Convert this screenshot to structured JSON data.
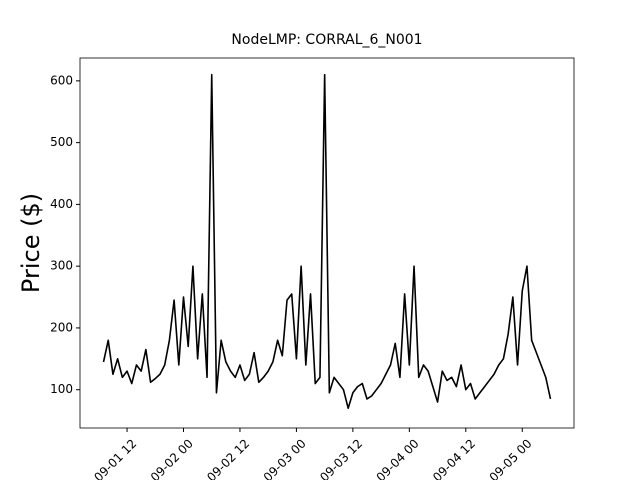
{
  "chart_data": {
    "type": "line",
    "title": "NodeLMP: CORRAL_6_N001",
    "y_label": "Price ($)",
    "color": "#000000",
    "x": [
      "09-01 07",
      "09-01 08",
      "09-01 09",
      "09-01 10",
      "09-01 11",
      "09-01 12",
      "09-01 13",
      "09-01 14",
      "09-01 15",
      "09-01 16",
      "09-01 17",
      "09-01 18",
      "09-01 19",
      "09-01 20",
      "09-01 21",
      "09-01 22",
      "09-01 23",
      "09-02 00",
      "09-02 01",
      "09-02 02",
      "09-02 03",
      "09-02 04",
      "09-02 05",
      "09-02 06",
      "09-02 07",
      "09-02 08",
      "09-02 09",
      "09-02 10",
      "09-02 11",
      "09-02 12",
      "09-02 13",
      "09-02 14",
      "09-02 15",
      "09-02 16",
      "09-02 17",
      "09-02 18",
      "09-02 19",
      "09-02 20",
      "09-02 21",
      "09-02 22",
      "09-02 23",
      "09-03 00",
      "09-03 01",
      "09-03 02",
      "09-03 03",
      "09-03 04",
      "09-03 05",
      "09-03 06",
      "09-03 07",
      "09-03 08",
      "09-03 09",
      "09-03 10",
      "09-03 11",
      "09-03 12",
      "09-03 13",
      "09-03 14",
      "09-03 15",
      "09-03 16",
      "09-03 17",
      "09-03 18",
      "09-03 19",
      "09-03 20",
      "09-03 21",
      "09-03 22",
      "09-03 23",
      "09-04 00",
      "09-04 01",
      "09-04 02",
      "09-04 03",
      "09-04 04",
      "09-04 05",
      "09-04 06",
      "09-04 07",
      "09-04 08",
      "09-04 09",
      "09-04 10",
      "09-04 11",
      "09-04 12",
      "09-04 13",
      "09-04 14",
      "09-04 15",
      "09-04 16",
      "09-04 17",
      "09-04 18",
      "09-04 19",
      "09-04 20",
      "09-04 21",
      "09-04 22",
      "09-04 23",
      "09-05 00",
      "09-05 01",
      "09-05 02",
      "09-05 03",
      "09-05 04",
      "09-05 05",
      "09-05 06"
    ],
    "values": [
      145,
      180,
      125,
      150,
      120,
      130,
      110,
      140,
      130,
      165,
      112,
      118,
      125,
      140,
      180,
      245,
      140,
      250,
      170,
      300,
      150,
      255,
      120,
      610,
      95,
      180,
      145,
      130,
      120,
      140,
      115,
      125,
      160,
      112,
      120,
      130,
      145,
      180,
      155,
      245,
      255,
      150,
      300,
      140,
      255,
      110,
      120,
      610,
      95,
      120,
      110,
      100,
      70,
      95,
      105,
      110,
      85,
      90,
      100,
      110,
      125,
      140,
      175,
      120,
      255,
      140,
      300,
      120,
      140,
      130,
      105,
      80,
      130,
      115,
      120,
      105,
      140,
      100,
      110,
      85,
      95,
      105,
      115,
      125,
      140,
      150,
      190,
      250,
      140,
      260,
      300,
      180,
      160,
      140,
      120,
      85
    ],
    "xlim": [
      "09-01 02",
      "09-05 11"
    ],
    "xticks": [
      "09-01 12",
      "09-02 00",
      "09-02 12",
      "09-03 00",
      "09-03 12",
      "09-04 00",
      "09-04 12",
      "09-05 00"
    ],
    "ylim": [
      38,
      637
    ],
    "yticks": [
      100,
      200,
      300,
      400,
      500,
      600
    ]
  }
}
